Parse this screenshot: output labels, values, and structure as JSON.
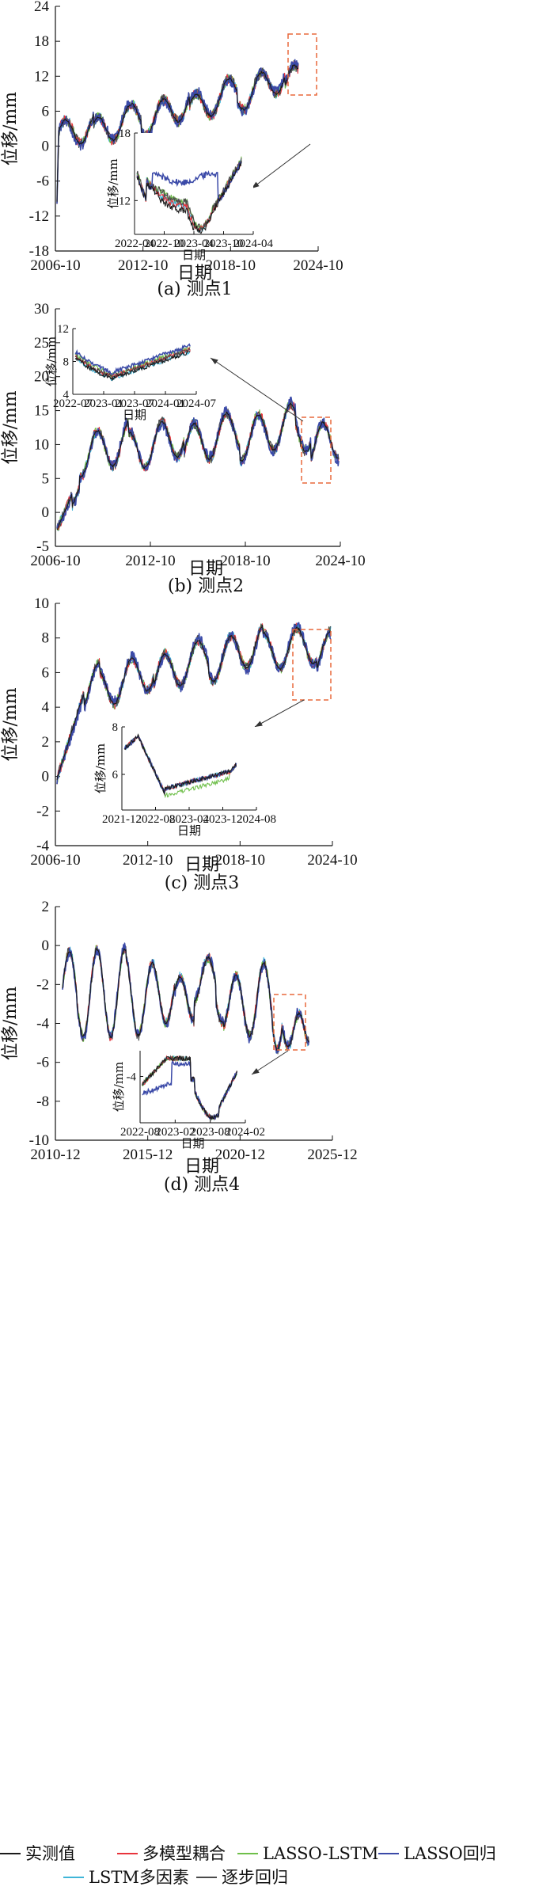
{
  "legend": [
    {
      "name": "实测值",
      "color": "#1a1a1a"
    },
    {
      "name": "多模型耦合",
      "color": "#e8343c"
    },
    {
      "name": "LASSO-LSTM",
      "color": "#6fbf4a"
    },
    {
      "name": "LASSO回归",
      "color": "#3b4aa8"
    },
    {
      "name": "LSTM多因素",
      "color": "#3fb5d8"
    },
    {
      "name": "逐步回归",
      "color": "#4a4a4a"
    }
  ],
  "chart_data": [
    {
      "type": "line",
      "caption": "(a) 测点1",
      "xlabel": "日期",
      "ylabel": "位移/mm",
      "x_ticks": [
        "2006-10",
        "2012-10",
        "2018-10",
        "2024-10"
      ],
      "y_ticks": [
        "24",
        "18",
        "12",
        "6",
        "0",
        "-6",
        "-12",
        "-18"
      ],
      "ylim": [
        -18,
        24
      ],
      "inset": {
        "xlabel": "日期",
        "ylabel": "位移/mm",
        "x_ticks": [
          "2022-04",
          "2022-10",
          "2023-04",
          "2023-10",
          "2024-04"
        ],
        "y_ticks": [
          "18",
          "12"
        ],
        "ylim": [
          9,
          18
        ]
      }
    },
    {
      "type": "line",
      "caption": "(b) 测点2",
      "xlabel": "日期",
      "ylabel": "位移/mm",
      "x_ticks": [
        "2006-10",
        "2012-10",
        "2018-10",
        "2024-10"
      ],
      "y_ticks": [
        "30",
        "25",
        "20",
        "15",
        "10",
        "5",
        "0",
        "-5"
      ],
      "ylim": [
        -5,
        30
      ],
      "inset": {
        "xlabel": "日期",
        "ylabel": "位移/mm",
        "x_ticks": [
          "2022-07",
          "2023-01",
          "2023-07",
          "2024-01",
          "2024-07"
        ],
        "y_ticks": [
          "12",
          "8",
          "4"
        ],
        "ylim": [
          4,
          12
        ]
      }
    },
    {
      "type": "line",
      "caption": "(c) 测点3",
      "xlabel": "日期",
      "ylabel": "位移/mm",
      "x_ticks": [
        "2006-10",
        "2012-10",
        "2018-10",
        "2024-10"
      ],
      "y_ticks": [
        "10",
        "8",
        "6",
        "4",
        "2",
        "0",
        "-2",
        "-4"
      ],
      "ylim": [
        -4,
        10
      ],
      "inset": {
        "xlabel": "日期",
        "ylabel": "位移/mm",
        "x_ticks": [
          "2021-12",
          "2022-08",
          "2023-04",
          "2023-12",
          "2024-08"
        ],
        "y_ticks": [
          "8",
          "6"
        ],
        "ylim": [
          4.5,
          8
        ]
      }
    },
    {
      "type": "line",
      "caption": "(d) 测点4",
      "xlabel": "日期",
      "ylabel": "位移/mm",
      "x_ticks": [
        "2010-12",
        "2015-12",
        "2020-12",
        "2025-12"
      ],
      "y_ticks": [
        "2",
        "0",
        "-2",
        "-4",
        "-6",
        "-8",
        "-10"
      ],
      "ylim": [
        -10,
        2
      ],
      "inset": {
        "xlabel": "日期",
        "ylabel": "位移/mm",
        "x_ticks": [
          "2022-08",
          "2023-02",
          "2023-08",
          "2024-02"
        ],
        "y_ticks": [
          "-4"
        ],
        "ylim": [
          -5.8,
          -3
        ]
      }
    }
  ]
}
